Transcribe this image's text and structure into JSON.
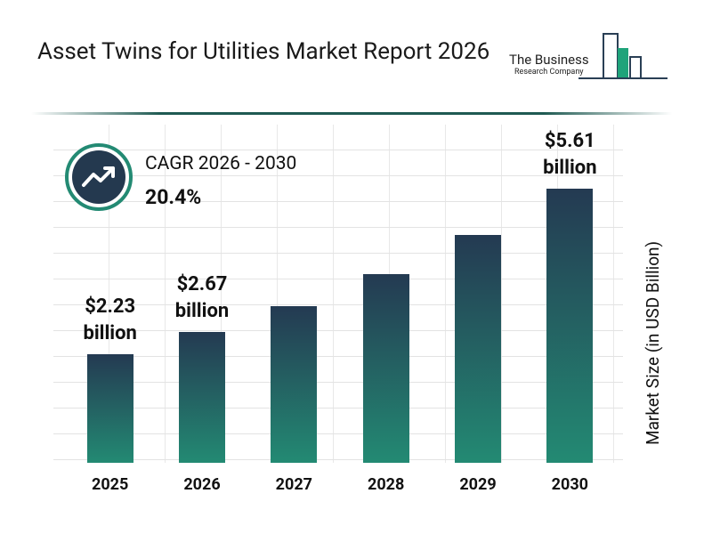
{
  "chart_data": {
    "type": "bar",
    "title": "Asset Twins for Utilities Market Report 2026",
    "cagr_label": "CAGR 2026 - 2030",
    "cagr_value": "20.4%",
    "y_label": "Market Size (in USD Billion)",
    "categories": [
      "2025",
      "2026",
      "2027",
      "2028",
      "2029",
      "2030"
    ],
    "values": [
      2.23,
      2.67,
      3.21,
      3.87,
      4.66,
      5.61
    ],
    "value_labels": [
      "$2.23 billion",
      "$2.67 billion",
      null,
      null,
      null,
      "$5.61 billion"
    ]
  },
  "logo": {
    "line1": "The Business",
    "line2": "Research Company"
  }
}
